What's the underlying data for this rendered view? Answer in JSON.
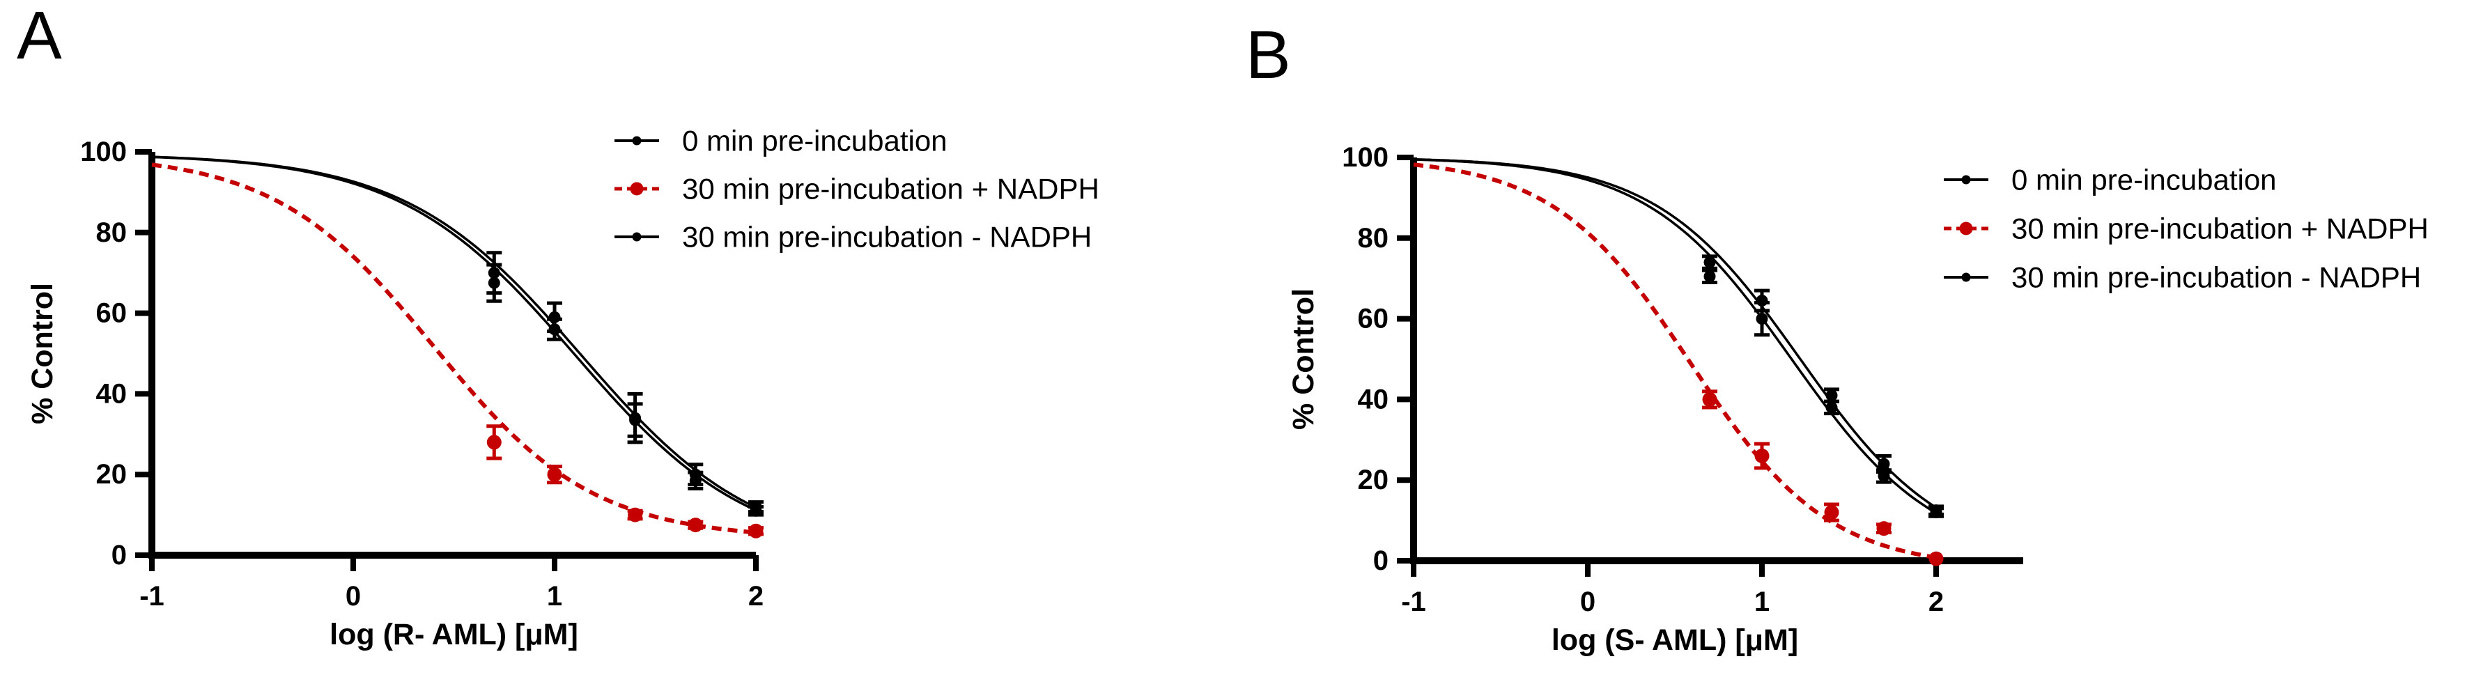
{
  "page": {
    "background": "#ffffff",
    "accent_red": "#c40000",
    "ink": "#000000"
  },
  "chart_data": [
    {
      "panel_label": "A",
      "type": "line",
      "subtype": "dose-response-sigmoid-fit",
      "title": "",
      "xlabel": "log (R- AML) [μM]",
      "ylabel": "% Control",
      "xlim": [
        -1,
        2
      ],
      "ylim": [
        0,
        100
      ],
      "xtick_values": [
        -1,
        0,
        1,
        2
      ],
      "xtick_labels": [
        "-1",
        "0",
        "1",
        "2"
      ],
      "ytick_values": [
        0,
        20,
        40,
        60,
        80,
        100
      ],
      "ytick_labels": [
        "0",
        "20",
        "40",
        "60",
        "80",
        "100"
      ],
      "grid": false,
      "legend_position": "top-right",
      "series": [
        {
          "name": "0 min pre-incubation",
          "color": "#000000",
          "line_style": "solid",
          "marker": "circle",
          "fit": {
            "top": 99.5,
            "bottom": 0,
            "logIC50": 1.13,
            "hill": 1.0
          },
          "points": [
            {
              "x": 0.7,
              "y": 70,
              "err": 5
            },
            {
              "x": 1.0,
              "y": 59,
              "err": 3.5
            },
            {
              "x": 1.4,
              "y": 34,
              "err": 6
            },
            {
              "x": 1.7,
              "y": 20,
              "err": 2.5
            },
            {
              "x": 2.0,
              "y": 12,
              "err": 1.2
            }
          ]
        },
        {
          "name": "30 min pre-incubation + NADPH",
          "color": "#c40000",
          "line_style": "dashed",
          "marker": "circle",
          "fit": {
            "top": 99.5,
            "bottom": 4,
            "logIC50": 0.4,
            "hill": 1.1
          },
          "points": [
            {
              "x": 0.7,
              "y": 28,
              "err": 4
            },
            {
              "x": 1.0,
              "y": 20,
              "err": 2
            },
            {
              "x": 1.4,
              "y": 10,
              "err": 1
            },
            {
              "x": 1.7,
              "y": 7.5,
              "err": 0.8
            },
            {
              "x": 2.0,
              "y": 6,
              "err": 0.8
            }
          ]
        },
        {
          "name": "30 min pre-incubation - NADPH",
          "color": "#000000",
          "line_style": "solid",
          "marker": "circle",
          "fit": {
            "top": 99.5,
            "bottom": 0,
            "logIC50": 1.1,
            "hill": 1.0
          },
          "points": [
            {
              "x": 0.7,
              "y": 67.5,
              "err": 4.5
            },
            {
              "x": 1.0,
              "y": 56,
              "err": 2.5
            },
            {
              "x": 1.4,
              "y": 33.5,
              "err": 4
            },
            {
              "x": 1.7,
              "y": 18.5,
              "err": 2
            },
            {
              "x": 2.0,
              "y": 11,
              "err": 1
            }
          ]
        }
      ]
    },
    {
      "panel_label": "B",
      "type": "line",
      "subtype": "dose-response-sigmoid-fit",
      "title": "",
      "xlabel": "log (S- AML) [μM]",
      "ylabel": "% Control",
      "xlim": [
        -1,
        2
      ],
      "ylim": [
        0,
        100
      ],
      "xtick_values": [
        -1,
        0,
        1,
        2
      ],
      "xtick_labels": [
        "-1",
        "0",
        "1",
        "2"
      ],
      "ytick_values": [
        0,
        20,
        40,
        60,
        80,
        100
      ],
      "ytick_labels": [
        "0",
        "20",
        "40",
        "60",
        "80",
        "100"
      ],
      "grid": false,
      "legend_position": "top-right",
      "series": [
        {
          "name": "0 min pre-incubation",
          "color": "#000000",
          "line_style": "solid",
          "marker": "circle",
          "fit": {
            "top": 100,
            "bottom": 0,
            "logIC50": 1.22,
            "hill": 1.05
          },
          "points": [
            {
              "x": 0.7,
              "y": 74,
              "err": 1.5
            },
            {
              "x": 1.0,
              "y": 64.5,
              "err": 2.5
            },
            {
              "x": 1.4,
              "y": 41,
              "err": 1.5
            },
            {
              "x": 1.7,
              "y": 24,
              "err": 2
            },
            {
              "x": 2.0,
              "y": 12.5,
              "err": 1
            }
          ]
        },
        {
          "name": "30 min pre-incubation + NADPH",
          "color": "#c40000",
          "line_style": "dashed",
          "marker": "circle",
          "fit": {
            "top": 100,
            "bottom": -2,
            "logIC50": 0.59,
            "hill": 1.1
          },
          "points": [
            {
              "x": 0.7,
              "y": 40,
              "err": 2
            },
            {
              "x": 1.0,
              "y": 26,
              "err": 3
            },
            {
              "x": 1.4,
              "y": 12,
              "err": 2
            },
            {
              "x": 1.7,
              "y": 8,
              "err": 1
            },
            {
              "x": 2.0,
              "y": 0.5,
              "err": 0.5
            }
          ]
        },
        {
          "name": "30 min pre-incubation - NADPH",
          "color": "#000000",
          "line_style": "solid",
          "marker": "circle",
          "fit": {
            "top": 100,
            "bottom": 0,
            "logIC50": 1.17,
            "hill": 1.05
          },
          "points": [
            {
              "x": 0.7,
              "y": 70.5,
              "err": 1.5
            },
            {
              "x": 1.0,
              "y": 60,
              "err": 4
            },
            {
              "x": 1.4,
              "y": 38,
              "err": 1.5
            },
            {
              "x": 1.7,
              "y": 21,
              "err": 1.5
            },
            {
              "x": 2.0,
              "y": 12,
              "err": 1
            }
          ]
        }
      ]
    }
  ]
}
